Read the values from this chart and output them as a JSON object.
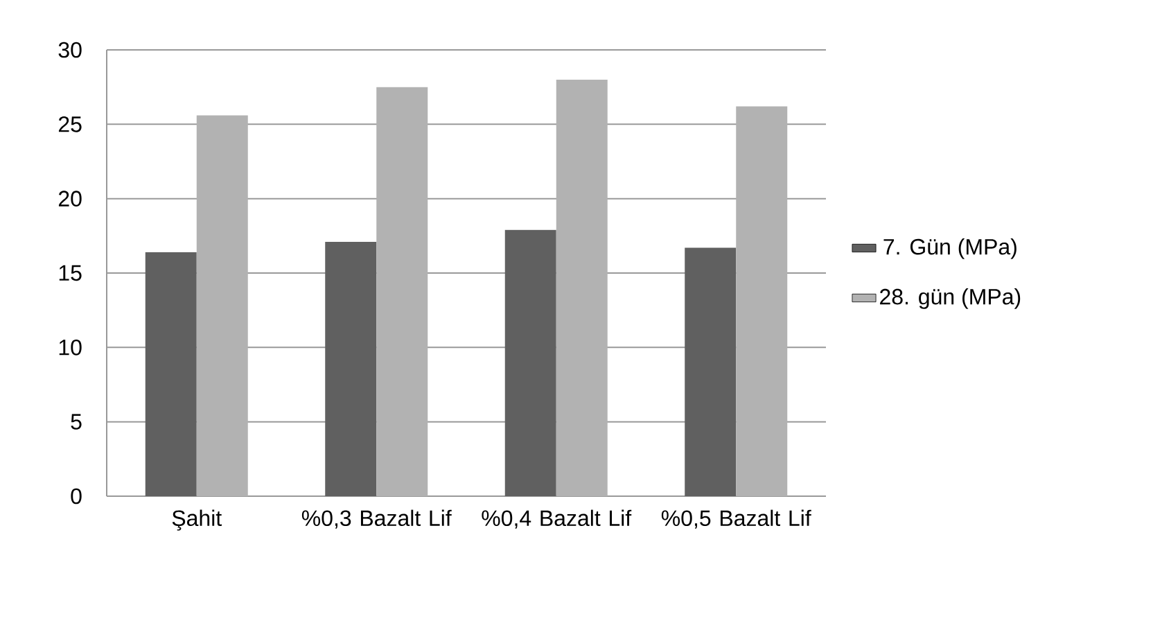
{
  "chart_data": {
    "type": "bar",
    "categories": [
      "Şahit",
      "%0,3 Bazalt Lif",
      "%0,4 Bazalt Lif",
      "%0,5 Bazalt Lif"
    ],
    "series": [
      {
        "name": "7. Gün (MPa)",
        "color": "#606060",
        "values": [
          16.4,
          17.1,
          17.9,
          16.7
        ]
      },
      {
        "name": "28. gün (MPa)",
        "color": "#b2b2b2",
        "values": [
          25.6,
          27.5,
          28.0,
          26.2
        ]
      }
    ],
    "ylim": [
      0,
      30
    ],
    "yticks": [
      0,
      5,
      10,
      15,
      20,
      25,
      30
    ],
    "grid": "y",
    "legend": "right"
  }
}
